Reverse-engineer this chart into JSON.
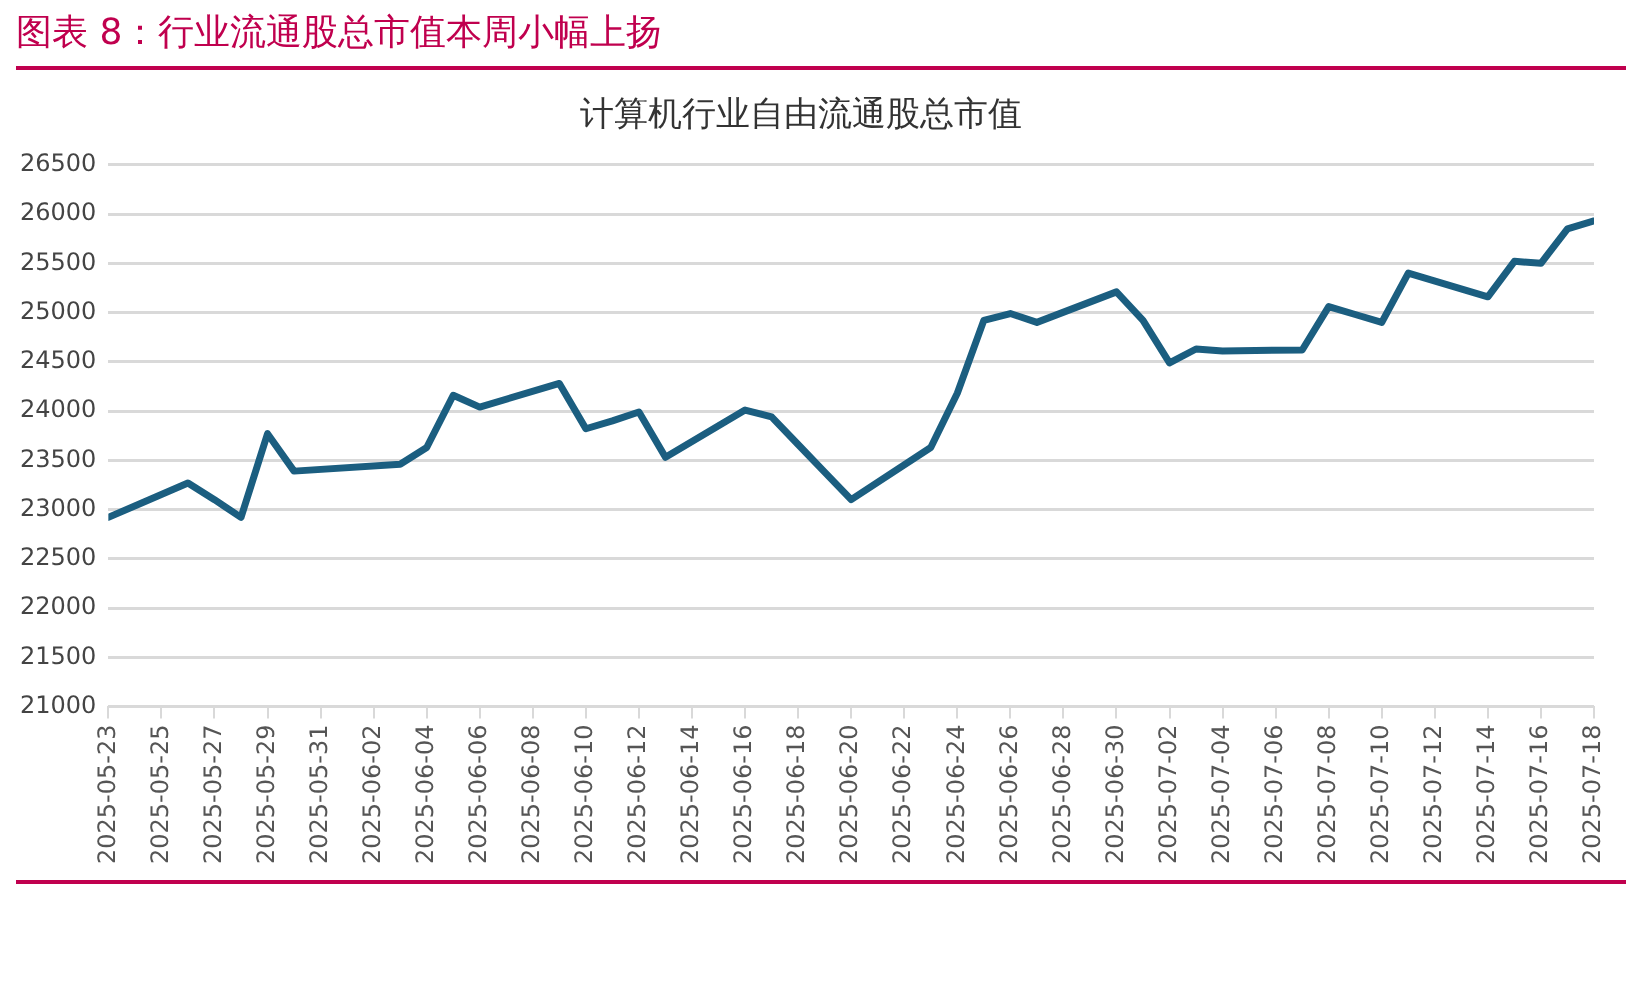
{
  "chart_data": {
    "type": "line",
    "title": "图表 8：行业流通股总市值本周小幅上扬",
    "subtitle": "计算机行业自由流通股总市值",
    "x": [
      "2025-05-23",
      "2025-05-26",
      "2025-05-27",
      "2025-05-28",
      "2025-05-29",
      "2025-05-30",
      "2025-06-03",
      "2025-06-04",
      "2025-06-05",
      "2025-06-06",
      "2025-06-09",
      "2025-06-10",
      "2025-06-11",
      "2025-06-12",
      "2025-06-13",
      "2025-06-16",
      "2025-06-17",
      "2025-06-18",
      "2025-06-19",
      "2025-06-20",
      "2025-06-23",
      "2025-06-24",
      "2025-06-25",
      "2025-06-26",
      "2025-06-27",
      "2025-06-30",
      "2025-07-01",
      "2025-07-02",
      "2025-07-03",
      "2025-07-04",
      "2025-07-07",
      "2025-07-08",
      "2025-07-09",
      "2025-07-10",
      "2025-07-11",
      "2025-07-14",
      "2025-07-15",
      "2025-07-16",
      "2025-07-17",
      "2025-07-18"
    ],
    "series": [
      {
        "color": "#1b5e80",
        "values": [
          22920,
          23270,
          23100,
          22920,
          23770,
          23390,
          23460,
          23630,
          24160,
          24040,
          24280,
          23820,
          23900,
          23990,
          23530,
          24010,
          23940,
          23660,
          23380,
          23100,
          23630,
          24180,
          24920,
          24990,
          24900,
          25210,
          24920,
          24490,
          24630,
          24610,
          24620,
          25060,
          24980,
          24900,
          25400,
          25160,
          25520,
          25500,
          25850,
          25930
        ]
      }
    ],
    "xlim": [
      "2025-05-23",
      "2025-07-18"
    ],
    "xticks": [
      "2025-05-23",
      "2025-05-25",
      "2025-05-27",
      "2025-05-29",
      "2025-05-31",
      "2025-06-02",
      "2025-06-04",
      "2025-06-06",
      "2025-06-08",
      "2025-06-10",
      "2025-06-12",
      "2025-06-14",
      "2025-06-16",
      "2025-06-18",
      "2025-06-20",
      "2025-06-22",
      "2025-06-24",
      "2025-06-26",
      "2025-06-28",
      "2025-06-30",
      "2025-07-02",
      "2025-07-04",
      "2025-07-06",
      "2025-07-08",
      "2025-07-10",
      "2025-07-12",
      "2025-07-14",
      "2025-07-16",
      "2025-07-18"
    ],
    "ylim": [
      21000,
      26500
    ],
    "yticks": [
      21000,
      21500,
      22000,
      22500,
      23000,
      23500,
      24000,
      24500,
      25000,
      25500,
      26000,
      26500
    ],
    "grid": "y",
    "legend": false,
    "marker": "none",
    "line_style": "solid"
  }
}
